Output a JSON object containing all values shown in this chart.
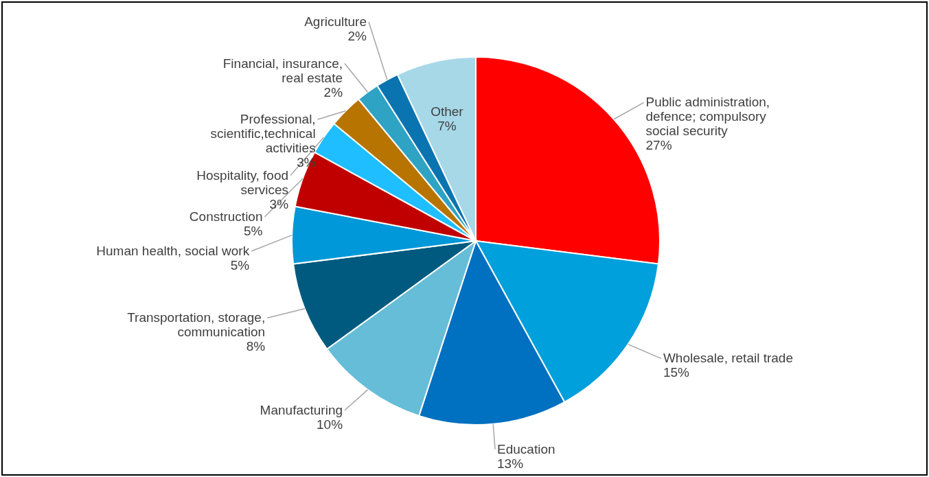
{
  "chart_data": {
    "type": "pie",
    "categories": [
      "Public administration, defence; compulsory social security",
      "Wholesale, retail trade",
      "Education",
      "Manufacturing",
      "Transportation, storage, communication",
      "Human health, social work",
      "Construction",
      "Hospitality,  food services",
      "Professional, scientific,technical activities",
      "Financial, insurance, real estate",
      "Agriculture",
      "Other"
    ],
    "values": [
      27,
      15,
      13,
      10,
      8,
      5,
      5,
      3,
      3,
      2,
      2,
      7
    ],
    "value_labels": [
      "27%",
      "15%",
      "13%",
      "10%",
      "8%",
      "5%",
      "5%",
      "3%",
      "3%",
      "2%",
      "2%",
      "7%"
    ],
    "colors": [
      "#ff0000",
      "#00a0dc",
      "#0070c0",
      "#66bdd8",
      "#005a7f",
      "#0098d8",
      "#c00000",
      "#1ebeff",
      "#b87400",
      "#2ea3c4",
      "#0a74b0",
      "#a6d8e8"
    ]
  }
}
